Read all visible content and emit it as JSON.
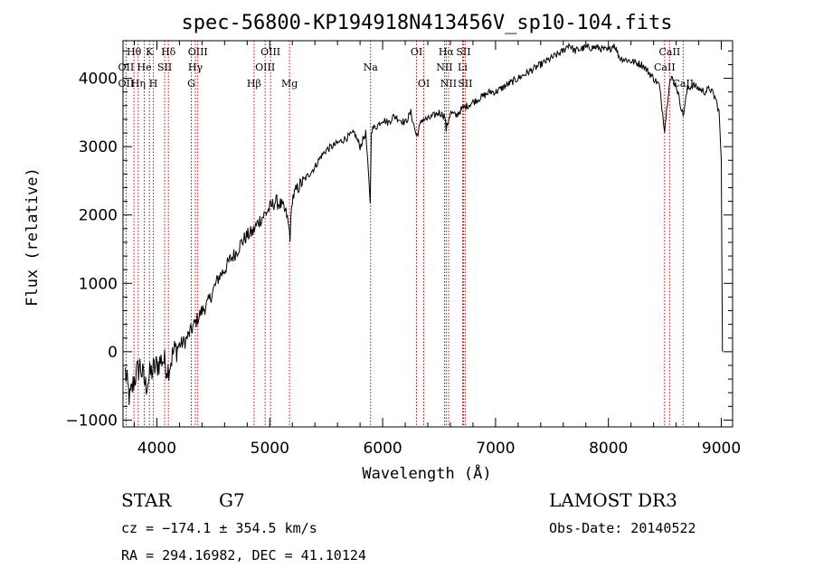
{
  "chart_data": {
    "type": "line",
    "title": "spec-56800-KP194918N413456V_sp10-104.fits",
    "xlabel": "Wavelength (Å)",
    "ylabel": "Flux (relative)",
    "xlim": [
      3700,
      9100
    ],
    "ylim": [
      -1100,
      4550
    ],
    "xticks": [
      4000,
      5000,
      6000,
      7000,
      8000,
      9000
    ],
    "yticks": [
      -1000,
      0,
      1000,
      2000,
      3000,
      4000
    ],
    "grid": false,
    "line_color": "#000000",
    "marker_color": "#cc0000",
    "series": [
      {
        "x": [
          3720,
          3760,
          3800,
          3850,
          3900,
          3950,
          4000,
          4050,
          4100,
          4150,
          4200,
          4250,
          4300,
          4350,
          4400,
          4450,
          4500,
          4550,
          4600,
          4650,
          4700,
          4750,
          4800,
          4850,
          4900,
          4950,
          5000,
          5050,
          5100,
          5150,
          5180,
          5200,
          5250,
          5300,
          5350,
          5400,
          5450,
          5500,
          5550,
          5600,
          5650,
          5700,
          5750,
          5800,
          5850,
          5890,
          5900,
          5950,
          6000,
          6050,
          6100,
          6150,
          6200,
          6250,
          6300,
          6350,
          6400,
          6450,
          6500,
          6550,
          6563,
          6600,
          6650,
          6700,
          6750,
          6800,
          6850,
          6900,
          6950,
          7000,
          7100,
          7200,
          7300,
          7400,
          7500,
          7600,
          7650,
          7700,
          7800,
          7900,
          8000,
          8050,
          8100,
          8200,
          8300,
          8400,
          8450,
          8498,
          8540,
          8560,
          8600,
          8662,
          8700,
          8750,
          8800,
          8850,
          8900,
          8950,
          8980,
          9000,
          9010
        ],
        "y": [
          -300,
          -700,
          -400,
          -200,
          -500,
          -300,
          -200,
          -100,
          -250,
          0,
          100,
          150,
          300,
          450,
          600,
          700,
          900,
          1100,
          1200,
          1350,
          1450,
          1600,
          1700,
          1750,
          1900,
          2000,
          2100,
          2200,
          2150,
          2000,
          1700,
          2250,
          2400,
          2500,
          2600,
          2700,
          2850,
          2950,
          3000,
          3050,
          3100,
          3150,
          3200,
          3000,
          3200,
          2200,
          3250,
          3300,
          3400,
          3350,
          3450,
          3400,
          3350,
          3500,
          3150,
          3400,
          3400,
          3450,
          3500,
          3450,
          3250,
          3500,
          3450,
          3550,
          3600,
          3650,
          3700,
          3750,
          3800,
          3800,
          3900,
          4000,
          4100,
          4200,
          4300,
          4400,
          4500,
          4400,
          4450,
          4450,
          4400,
          4500,
          4300,
          4250,
          4200,
          4000,
          3900,
          3250,
          3950,
          4000,
          3900,
          3450,
          3850,
          3900,
          3850,
          3800,
          3850,
          3700,
          3500,
          2800,
          0
        ],
        "color": "#000000"
      }
    ],
    "spectral_lines": [
      {
        "label": "Hθ",
        "x": 3797,
        "row": 1
      },
      {
        "label": "K",
        "x": 3934,
        "row": 1
      },
      {
        "label": "Hδ",
        "x": 4102,
        "row": 1
      },
      {
        "label": "OII",
        "x": 3727,
        "row": 2
      },
      {
        "label": "He",
        "x": 3889,
        "row": 2
      },
      {
        "label": "SII",
        "x": 4069,
        "row": 2
      },
      {
        "label": "OII",
        "x": 3727,
        "row": 3
      },
      {
        "label": "Hη",
        "x": 3835,
        "row": 3
      },
      {
        "label": "H",
        "x": 3969,
        "row": 3
      },
      {
        "label": "OIII",
        "x": 4363,
        "row": 1
      },
      {
        "label": "Hγ",
        "x": 4341,
        "row": 2
      },
      {
        "label": "G",
        "x": 4305,
        "row": 3
      },
      {
        "label": "OIII",
        "x": 5007,
        "row": 1
      },
      {
        "label": "OIII",
        "x": 4959,
        "row": 2
      },
      {
        "label": "Hβ",
        "x": 4861,
        "row": 3
      },
      {
        "label": "Mg",
        "x": 5175,
        "row": 3
      },
      {
        "label": "Na",
        "x": 5893,
        "row": 2
      },
      {
        "label": "OI",
        "x": 6300,
        "row": 1
      },
      {
        "label": "OI",
        "x": 6364,
        "row": 3
      },
      {
        "label": "Hα",
        "x": 6563,
        "row": 1
      },
      {
        "label": "SII",
        "x": 6716,
        "row": 1
      },
      {
        "label": "NII",
        "x": 6548,
        "row": 2
      },
      {
        "label": "Li",
        "x": 6708,
        "row": 2
      },
      {
        "label": "NII",
        "x": 6584,
        "row": 3
      },
      {
        "label": "SII",
        "x": 6731,
        "row": 3
      },
      {
        "label": "CaII",
        "x": 8542,
        "row": 1
      },
      {
        "label": "CaII",
        "x": 8498,
        "row": 2
      },
      {
        "label": "CaII",
        "x": 8662,
        "row": 3
      }
    ]
  },
  "info": {
    "object_class": "STAR",
    "subclass": "G7",
    "survey": "LAMOST DR3",
    "cz": "cz = −174.1 ± 354.5 km/s",
    "obs_date": "Obs-Date: 20140522",
    "coords": "RA = 294.16982, DEC =  41.10124"
  }
}
